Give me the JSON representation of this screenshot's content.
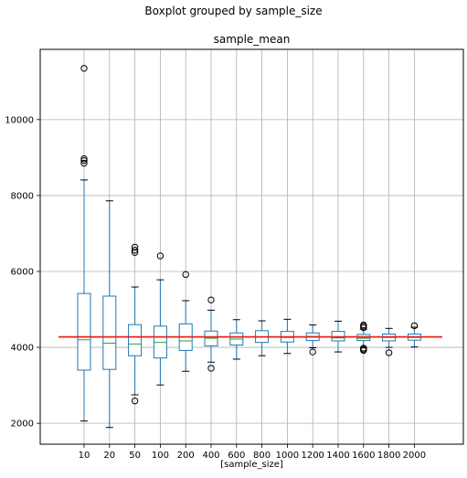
{
  "figure": {
    "suptitle": "Boxplot grouped by sample_size",
    "title": "sample_mean",
    "xlabel": "[sample_size]"
  },
  "chart_data": {
    "type": "box",
    "title": "sample_mean",
    "suptitle": "Boxplot grouped by sample_size",
    "xlabel": "[sample_size]",
    "ylabel": "",
    "ylim": [
      1450,
      11850
    ],
    "yticks": [
      2000,
      4000,
      6000,
      8000,
      10000
    ],
    "grid": true,
    "reference_line": {
      "y": 4275,
      "color": "#e8221c"
    },
    "colors": {
      "box": "#1f77b4",
      "median": "#2ca02c",
      "flier": "#000000",
      "whisker": "#000000",
      "grid": "#b0b0b0"
    },
    "categories": [
      "10",
      "20",
      "50",
      "100",
      "200",
      "400",
      "600",
      "800",
      "1000",
      "1200",
      "1400",
      "1600",
      "1800",
      "2000"
    ],
    "boxes": [
      {
        "whislo": 2060,
        "q1": 3400,
        "med": 4200,
        "q3": 5420,
        "whishi": 8410,
        "fliers": [
          8850,
          8920,
          8970,
          11350
        ]
      },
      {
        "whislo": 1890,
        "q1": 3420,
        "med": 4110,
        "q3": 5350,
        "whishi": 7860,
        "fliers": []
      },
      {
        "whislo": 2750,
        "q1": 3780,
        "med": 4090,
        "q3": 4600,
        "whishi": 5590,
        "fliers": [
          2590,
          6500,
          6560,
          6640
        ]
      },
      {
        "whislo": 3010,
        "q1": 3720,
        "med": 4130,
        "q3": 4560,
        "whishi": 5780,
        "fliers": [
          6410
        ]
      },
      {
        "whislo": 3370,
        "q1": 3920,
        "med": 4170,
        "q3": 4620,
        "whishi": 5230,
        "fliers": [
          5920
        ]
      },
      {
        "whislo": 3610,
        "q1": 4040,
        "med": 4240,
        "q3": 4430,
        "whishi": 4980,
        "fliers": [
          3450,
          5250
        ]
      },
      {
        "whislo": 3690,
        "q1": 4060,
        "med": 4220,
        "q3": 4380,
        "whishi": 4730,
        "fliers": []
      },
      {
        "whislo": 3780,
        "q1": 4130,
        "med": 4270,
        "q3": 4440,
        "whishi": 4700,
        "fliers": []
      },
      {
        "whislo": 3840,
        "q1": 4140,
        "med": 4260,
        "q3": 4420,
        "whishi": 4740,
        "fliers": []
      },
      {
        "whislo": 3990,
        "q1": 4180,
        "med": 4290,
        "q3": 4380,
        "whishi": 4590,
        "fliers": [
          3880
        ]
      },
      {
        "whislo": 3880,
        "q1": 4170,
        "med": 4250,
        "q3": 4420,
        "whishi": 4690,
        "fliers": []
      },
      {
        "whislo": 3990,
        "q1": 4180,
        "med": 4240,
        "q3": 4340,
        "whishi": 4480,
        "fliers": [
          3920,
          3950,
          3980,
          4520,
          4560,
          4590
        ]
      },
      {
        "whislo": 4000,
        "q1": 4170,
        "med": 4260,
        "q3": 4350,
        "whishi": 4500,
        "fliers": [
          3860
        ]
      },
      {
        "whislo": 4010,
        "q1": 4190,
        "med": 4260,
        "q3": 4350,
        "whishi": 4530,
        "fliers": [
          4570
        ]
      }
    ]
  }
}
